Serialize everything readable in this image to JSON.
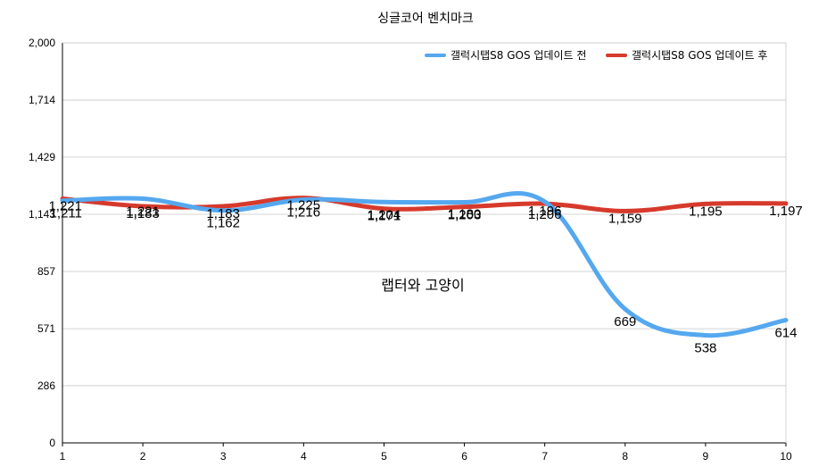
{
  "chart_data": {
    "type": "line",
    "title": "싱글코어 벤치마크",
    "watermark": "랩터와 고양이",
    "x": [
      1,
      2,
      3,
      4,
      5,
      6,
      7,
      8,
      9,
      10
    ],
    "x_tick_labels": [
      "1",
      "2",
      "3",
      "4",
      "5",
      "6",
      "7",
      "8",
      "9",
      "10"
    ],
    "ylim": [
      0,
      2000
    ],
    "y_ticks": [
      0,
      286,
      571,
      857,
      1143,
      1429,
      1714,
      2000
    ],
    "y_tick_labels": [
      "0",
      "286",
      "571",
      "857",
      "1,143",
      "1,429",
      "1,714",
      "2,000"
    ],
    "grid": true,
    "legend_position": "top-right",
    "series": [
      {
        "name": "갤럭시탭S8 GOS 업데이트 전",
        "color": "#55a8ef",
        "values": [
          1211,
          1221,
          1162,
          1216,
          1204,
          1203,
          1206,
          669,
          538,
          614
        ],
        "labels": [
          "1,211",
          "1,221",
          "1,162",
          "1,216",
          "1,204",
          "1,203",
          "1,206",
          "669",
          "538",
          "614"
        ]
      },
      {
        "name": "갤럭시탭S8 GOS 업데이트 후",
        "color": "#d63a2c",
        "values": [
          1221,
          1183,
          1183,
          1225,
          1171,
          1180,
          1196,
          1159,
          1195,
          1197
        ],
        "labels": [
          "1,221",
          "1,183",
          "1,183",
          "1,225",
          "1,171",
          "1,180",
          "1,196",
          "1,159",
          "1,195",
          "1,197"
        ]
      }
    ]
  }
}
